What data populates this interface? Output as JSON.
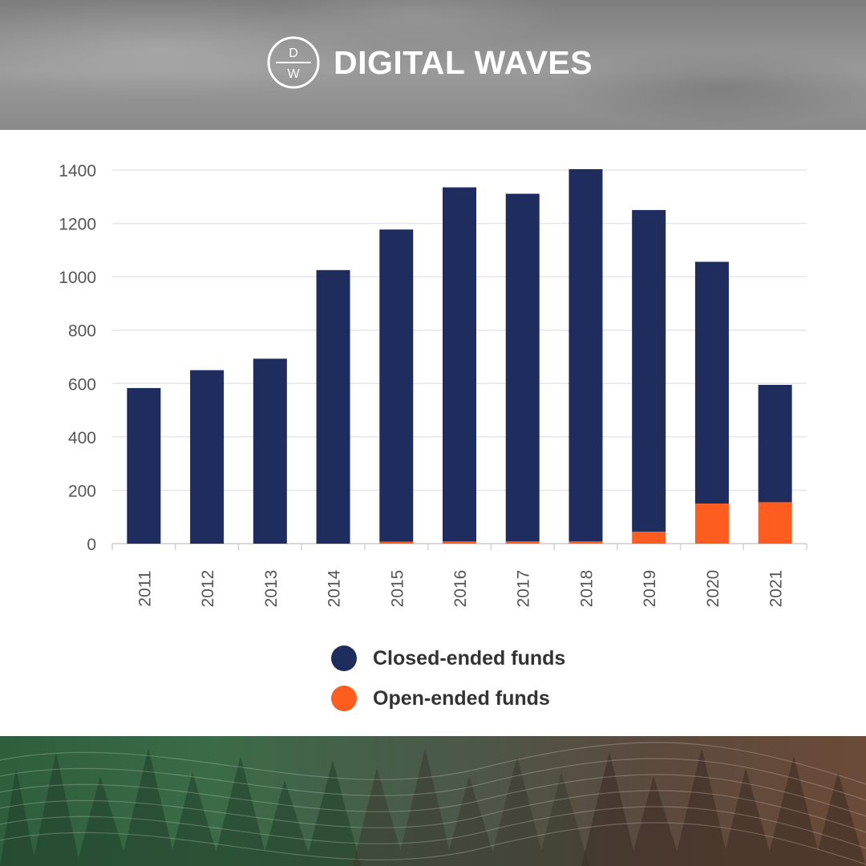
{
  "brand": {
    "mark_top": "D",
    "mark_bottom": "W",
    "name": "DIGITAL WAVES"
  },
  "legend": {
    "closed_label": "Closed-ended funds",
    "open_label": "Open-ended funds"
  },
  "colors": {
    "closed": "#1f2d5e",
    "open": "#ff5d1f",
    "grid": "#e6e6e6",
    "axis_text": "#555555"
  },
  "chart_data": {
    "type": "bar",
    "stacked": true,
    "categories": [
      "2011",
      "2012",
      "2013",
      "2014",
      "2015",
      "2016",
      "2017",
      "2018",
      "2019",
      "2020",
      "2021"
    ],
    "series": [
      {
        "name": "Closed-ended funds",
        "values": [
          583,
          650,
          693,
          1025,
          1170,
          1327,
          1303,
          1395,
          1205,
          906,
          440
        ]
      },
      {
        "name": "Open-ended funds",
        "values": [
          0,
          0,
          0,
          0,
          7,
          8,
          8,
          8,
          45,
          150,
          155
        ]
      }
    ],
    "yticks": [
      0,
      200,
      400,
      600,
      800,
      1000,
      1200,
      1400
    ],
    "ylim": [
      0,
      1400
    ],
    "grid": true,
    "legend_position": "bottom",
    "xlabel": "",
    "ylabel": ""
  }
}
